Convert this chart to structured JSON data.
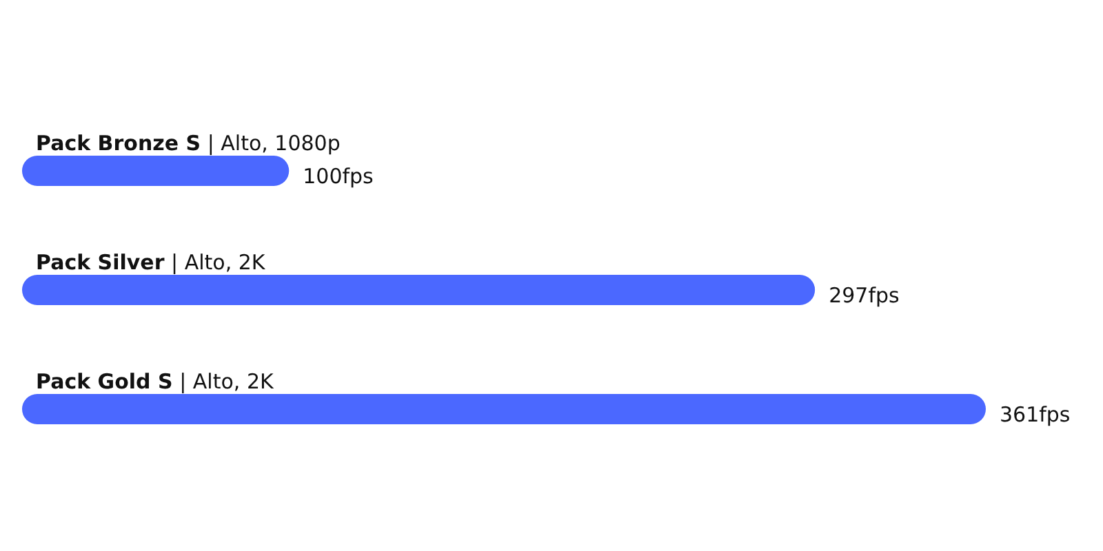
{
  "chart_data": {
    "type": "bar",
    "orientation": "horizontal",
    "categories": [
      "Pack Bronze S | Alto, 1080p",
      "Pack Silver | Alto, 2K",
      "Pack Gold S | Alto, 2K"
    ],
    "values": [
      100,
      297,
      361
    ],
    "value_labels": [
      "100fps",
      "297fps",
      "361fps"
    ],
    "color": "#4b68ff"
  }
}
